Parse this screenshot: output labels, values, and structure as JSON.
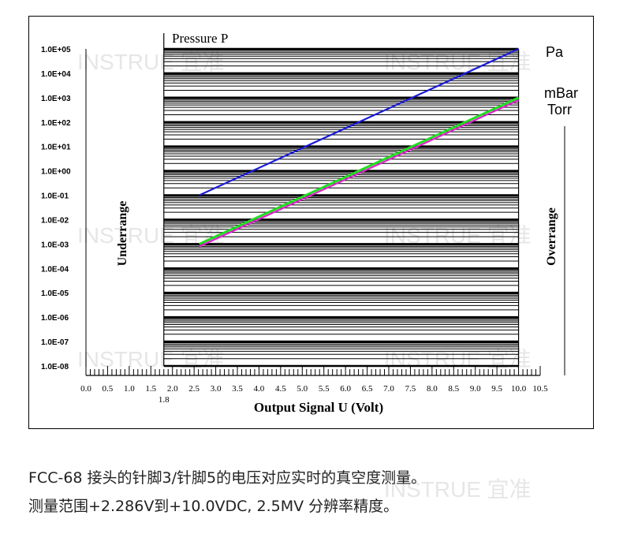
{
  "chart_data": {
    "type": "line",
    "title": "Pressure P",
    "xlabel": "Output Signal U (Volt)",
    "xlim": [
      0.0,
      10.5
    ],
    "x_tick_labels": [
      "0.0",
      "0.5",
      "1.0",
      "1.5",
      "2.0",
      "2.5",
      "3.0",
      "3.5",
      "4.0",
      "4.5",
      "5.0",
      "5.5",
      "6.0",
      "6.5",
      "7.0",
      "7.5",
      "8.0",
      "8.5",
      "9.0",
      "9.5",
      "10.0",
      "10.5"
    ],
    "x_extra_tick_label": "1.8",
    "x_extra_tick_value": 1.8,
    "y_scale": "log",
    "ylim_exponent": [
      -8,
      5
    ],
    "y_tick_labels": [
      "1.0E+05",
      "1.0E+04",
      "1.0E+03",
      "1.0E+02",
      "1.0E+01",
      "1.0E+00",
      "1.0E-01",
      "1.0E-02",
      "1.0E-03",
      "1.0E-04",
      "1.0E-05",
      "1.0E-06",
      "1.0E-07",
      "1.0E-08"
    ],
    "grid": true,
    "region_left_label": "Underrange",
    "region_right_label": "Overrange",
    "region_left_end_x": 1.8,
    "region_right_start_x": 10.0,
    "series": [
      {
        "name": "Pa",
        "color": "#1a1adb",
        "x": [
          2.62,
          10.0
        ],
        "y_exp": [
          -1.0,
          5.0
        ]
      },
      {
        "name": "mBar",
        "color": "#22dd22",
        "x": [
          2.62,
          10.0
        ],
        "y_exp": [
          -3.0,
          3.0
        ]
      },
      {
        "name": "Torr",
        "color": "#dd22cc",
        "x": [
          2.62,
          10.0
        ],
        "y_exp": [
          -3.1,
          2.9
        ]
      }
    ],
    "watermark": "INSTRUE 宜准"
  },
  "caption": {
    "line1": "FCC-68 接头的针脚3/针脚5的电压对应实时的真空度测量。",
    "line2": "测量范围+2.286V到+10.0VDC, 2.5MV 分辨率精度。"
  }
}
